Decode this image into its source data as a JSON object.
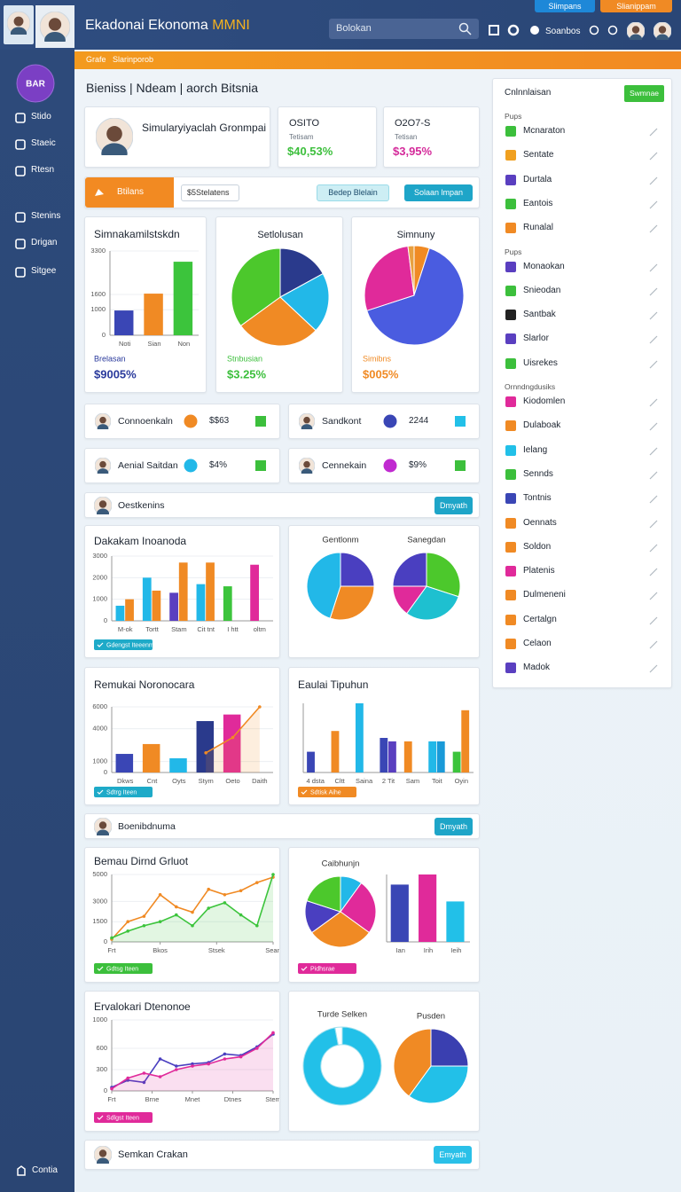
{
  "header": {
    "title": "Ekadonai Ekonoma",
    "title_accent": "MMNI",
    "search": "Bolokan",
    "user": "Soanbos",
    "buttons": [
      "Slimpans",
      "Slianippam"
    ]
  },
  "sidebar": {
    "badge": "BAR",
    "items": [
      "Stido",
      "Staeic",
      "Rtesn",
      "Stenins",
      "Drigan",
      "Sitgee"
    ],
    "footer": "Contia"
  },
  "breadcrumb": [
    "Grafe",
    "Slarinporob"
  ],
  "page_title": "Bieniss | Ndeam | aorch Bitsnia",
  "profile": "Simularyiyaclah Gronmpai",
  "kpis": [
    {
      "title": "OSITO",
      "subtitle": "Tetisam",
      "value": "$40,53%",
      "color": "#3cbf3c"
    },
    {
      "title": "O2O7-S",
      "subtitle": "Tetisan",
      "value": "$3,95%",
      "color": "#d42a9a"
    }
  ],
  "toolbar": {
    "tab": "Btilans",
    "input": "$5Stelatens",
    "button_1": "Bedep Blelain",
    "button_2": "Solaan lmpan"
  },
  "stats": [
    {
      "label": "Connoenkaln",
      "value": "$$63"
    },
    {
      "label": "Sandkont",
      "value": "2244"
    },
    {
      "label": "Aenial Saitdan",
      "value": "$4%"
    },
    {
      "label": "Cennekain",
      "value": "$9%"
    }
  ],
  "sections": [
    {
      "title": "Oestkenins",
      "button": "Dmyath"
    },
    {
      "title": "Boenibdnuma",
      "button": "Dmyath"
    }
  ],
  "charts": [
    {
      "title": "Simnakamilstskdn",
      "caption": "Brelasan",
      "value": "$9005%",
      "accent": "#2a3a9c",
      "plots": [
        {
          "type": "bar",
          "categories": [
            "Noti",
            "Sian",
            "Non"
          ],
          "values": [
            970,
            1630,
            2880
          ],
          "colors": [
            "#3a46b5",
            "#f08a24",
            "#3cc43c"
          ],
          "ylim": [
            0,
            3300
          ],
          "yticks": [
            0,
            1000,
            1600,
            3300
          ]
        }
      ]
    },
    {
      "title": "Setlolusan",
      "caption": "Stnbusian",
      "value": "$3.25%",
      "accent": "#3cbf3c",
      "plots": [
        {
          "type": "pie",
          "values": [
            17,
            20,
            28,
            35
          ],
          "colors": [
            "#2a3a8c",
            "#22b8e8",
            "#f08a24",
            "#4cc82c"
          ]
        }
      ]
    },
    {
      "title": "Simnuny",
      "caption": "Simibns",
      "value": "$005%",
      "accent": "#f08a24",
      "plots": [
        {
          "type": "pie",
          "values": [
            5,
            65,
            28,
            2
          ],
          "colors": [
            "#f08a24",
            "#4a5ce0",
            "#e02a9a",
            "#e8a040"
          ]
        }
      ]
    },
    {
      "title": "Dakakam Inoanoda",
      "chip": "Gdengst Iteeenm",
      "accent": "#1eaac8",
      "plots": [
        {
          "type": "bar",
          "categories": [
            "M-ok",
            "Tortt",
            "Stam",
            "Cit tnt",
            "I htt",
            "oltm"
          ],
          "ylim": [
            0,
            3000
          ],
          "yticks": [
            0,
            1000,
            2000,
            3000
          ],
          "series": [
            {
              "colors": [
                "#22b8e8",
                "#22b8e8",
                "#5a3fc0",
                "#22b8e8",
                "#3cc43c",
                "#e02a9a"
              ],
              "values": [
                700,
                2000,
                1300,
                1700,
                1600,
                2600
              ]
            },
            {
              "colors": [
                "#f08a24",
                "#f08a24",
                "#f08a24",
                "#f08a24",
                "#f08a24",
                "#f08a24"
              ],
              "values": [
                1000,
                1400,
                2700,
                2700,
                null,
                null
              ]
            }
          ]
        }
      ]
    },
    {
      "plots": [
        {
          "type": "pie",
          "title": "Gentlonm",
          "values": [
            25,
            30,
            45
          ],
          "colors": [
            "#4a3fc0",
            "#f08a24",
            "#22b8e8"
          ]
        },
        {
          "type": "pie",
          "title": "Sanegdan",
          "values": [
            30,
            30,
            15,
            25
          ],
          "colors": [
            "#4cc82c",
            "#1ec0d0",
            "#e02a9a",
            "#4a3fc0"
          ]
        }
      ]
    },
    {
      "title": "Remukai Noronocara",
      "chip": "Sdtrg Iteen",
      "accent": "#1eaac8",
      "plots": [
        {
          "type": "bar",
          "categories": [
            "Dkws",
            "Cnt",
            "Oyts",
            "Stym",
            "Oeto",
            "Daith"
          ],
          "values": [
            1700,
            2600,
            1300,
            4700,
            5300,
            null
          ],
          "colors": [
            "#3a46b5",
            "#f08a24",
            "#22b8e8",
            "#2a3a8c",
            "#e02a9a",
            "#f08a24"
          ],
          "ylim": [
            0,
            6000
          ],
          "yticks": [
            0,
            1000,
            4000,
            6000
          ]
        },
        {
          "type": "line",
          "values": [
            null,
            null,
            null,
            1800,
            3200,
            6000
          ],
          "color": "#f08a24",
          "area": true
        }
      ]
    },
    {
      "title": "Eaulai Tipuhun",
      "chip": "Sdtisk Aihe",
      "accent": "#f08a24",
      "plots": [
        {
          "type": "bar",
          "categories": [
            "4 dsta",
            "Cltt",
            "Saina",
            "2 Tit",
            "Sam",
            "Toit",
            "Oyin"
          ],
          "ylim": [
            0,
            2
          ],
          "series": [
            {
              "colors": [
                "#3a46b5",
                "#f08a24",
                "#22b8e8",
                "#3a46b5",
                "#f08a24",
                "#22b8e8",
                "#3cc43c"
              ],
              "values": [
                0.6,
                1.2,
                2.0,
                1.0,
                0.9,
                0.9,
                0.6
              ]
            },
            {
              "colors": [
                "#f08a24",
                "#f08a24",
                "#f08a24",
                "#5a3fc0",
                "#f08a24",
                "#1a9ad8",
                "#f08a24"
              ],
              "values": [
                null,
                null,
                null,
                0.9,
                null,
                0.9,
                1.8
              ]
            }
          ]
        }
      ]
    },
    {
      "title": "Bemau Dirnd Grluot",
      "chip": "Gdtsg Iteen",
      "accent": "#3cbf3c",
      "plots": [
        {
          "type": "line",
          "x": [
            0,
            1,
            2,
            3,
            4,
            5,
            6,
            7,
            8,
            9,
            10
          ],
          "xlim": [
            0,
            10
          ],
          "xticks": [
            {
              "value": 0,
              "label": "Frt"
            },
            {
              "value": 3,
              "label": "Bkos"
            },
            {
              "value": 6.5,
              "label": "Stsek"
            },
            {
              "value": 10,
              "label": "Sean"
            }
          ],
          "ylim": [
            0,
            5000
          ],
          "yticks": [
            0,
            1500,
            3000,
            5000
          ],
          "series": [
            {
              "color": "#f08a24",
              "values": [
                200,
                1500,
                1900,
                3500,
                2600,
                2200,
                3900,
                3500,
                3800,
                4400,
                4800
              ]
            },
            {
              "color": "#3cc43c",
              "area": true,
              "values": [
                300,
                800,
                1200,
                1500,
                2000,
                1200,
                2500,
                2900,
                2000,
                1200,
                5000
              ]
            }
          ]
        }
      ]
    },
    {
      "chip": "Pidhsrae",
      "accent": "#e02a9a",
      "plots": [
        {
          "type": "pie",
          "title": "Caibhunjn",
          "values": [
            10,
            25,
            30,
            15,
            20
          ],
          "colors": [
            "#22b8e8",
            "#e02a9a",
            "#f08a24",
            "#4a3fc0",
            "#4cc82c"
          ]
        },
        {
          "type": "bar",
          "categories": [
            "Ian",
            "Irih",
            "Ieih"
          ],
          "values": [
            85,
            100,
            60
          ],
          "colors": [
            "#3a46b5",
            "#e02a9a",
            "#22c0e8"
          ],
          "ylim": [
            0,
            100
          ]
        }
      ]
    },
    {
      "title": "Ervalokari Dtenonoe",
      "chip": "Sdlgst Iteen",
      "accent": "#e02a9a",
      "plots": [
        {
          "type": "line",
          "x": [
            0,
            1,
            2,
            3,
            4,
            5,
            6,
            7,
            8,
            9,
            10
          ],
          "xlim": [
            0,
            10
          ],
          "xticks": [
            {
              "value": 0,
              "label": "Frt"
            },
            {
              "value": 2.5,
              "label": "Brne"
            },
            {
              "value": 5,
              "label": "Mnet"
            },
            {
              "value": 7.5,
              "label": "Dtnes"
            },
            {
              "value": 10,
              "label": "Stem"
            }
          ],
          "ylim": [
            0,
            1000
          ],
          "yticks": [
            0,
            300,
            600,
            1000
          ],
          "series": [
            {
              "color": "#4a3fc0",
              "values": [
                50,
                150,
                120,
                450,
                350,
                380,
                400,
                520,
                500,
                620,
                800
              ]
            },
            {
              "color": "#e02a9a",
              "area": true,
              "values": [
                30,
                180,
                250,
                200,
                300,
                350,
                380,
                450,
                480,
                600,
                820
              ]
            }
          ]
        }
      ]
    },
    {
      "plots": [
        {
          "type": "donut",
          "title": "Turde Selken",
          "values": [
            97,
            3
          ],
          "colors": [
            "#22c0e8",
            "#ffffff"
          ]
        },
        {
          "type": "pie",
          "title": "Pusden",
          "values": [
            25,
            35,
            40
          ],
          "colors": [
            "#3a3fb0",
            "#22c0e8",
            "#f08a24"
          ]
        }
      ]
    }
  ],
  "footer": {
    "title": "Semkan Crakan",
    "button": "Emyath"
  },
  "panel": {
    "title": "Cnlnnlaisan",
    "button": "Swmnae",
    "groups": [
      {
        "title": "Pups",
        "items": [
          {
            "label": "Mcnaraton",
            "color": "#3cbf3c"
          },
          {
            "label": "Sentate",
            "color": "#f0a020"
          },
          {
            "label": "Durtala",
            "color": "#5a3fc0"
          },
          {
            "label": "Eantois",
            "color": "#3cbf3c"
          },
          {
            "label": "Runalal",
            "color": "#f08a24"
          }
        ]
      },
      {
        "title": "Pups",
        "items": [
          {
            "label": "Monaokan",
            "color": "#5a3fc0"
          },
          {
            "label": "Snieodan",
            "color": "#3cbf3c"
          },
          {
            "label": "Santbak",
            "color": "#222222"
          },
          {
            "label": "Slarlor",
            "color": "#5a3fc0"
          },
          {
            "label": "Uisrekes",
            "color": "#3cbf3c"
          }
        ]
      },
      {
        "title": "Ornndngdusiks",
        "items": [
          {
            "label": "Kiodomlen",
            "color": "#e02a9a"
          },
          {
            "label": "Dulaboak",
            "color": "#f08a24"
          },
          {
            "label": "Ielang",
            "color": "#22c0e8"
          },
          {
            "label": "Sennds",
            "color": "#3cbf3c"
          },
          {
            "label": "Tontnis",
            "color": "#3a46b5"
          },
          {
            "label": "Oennats",
            "color": "#f08a24"
          },
          {
            "label": "Soldon",
            "color": "#f08a24"
          },
          {
            "label": "Platenis",
            "color": "#e02a9a"
          },
          {
            "label": "Dulmeneni",
            "color": "#f08a24"
          },
          {
            "label": "Certalgn",
            "color": "#f08a24"
          },
          {
            "label": "Celaon",
            "color": "#f08a24"
          },
          {
            "label": "Madok",
            "color": "#5a3fc0"
          }
        ]
      }
    ]
  }
}
